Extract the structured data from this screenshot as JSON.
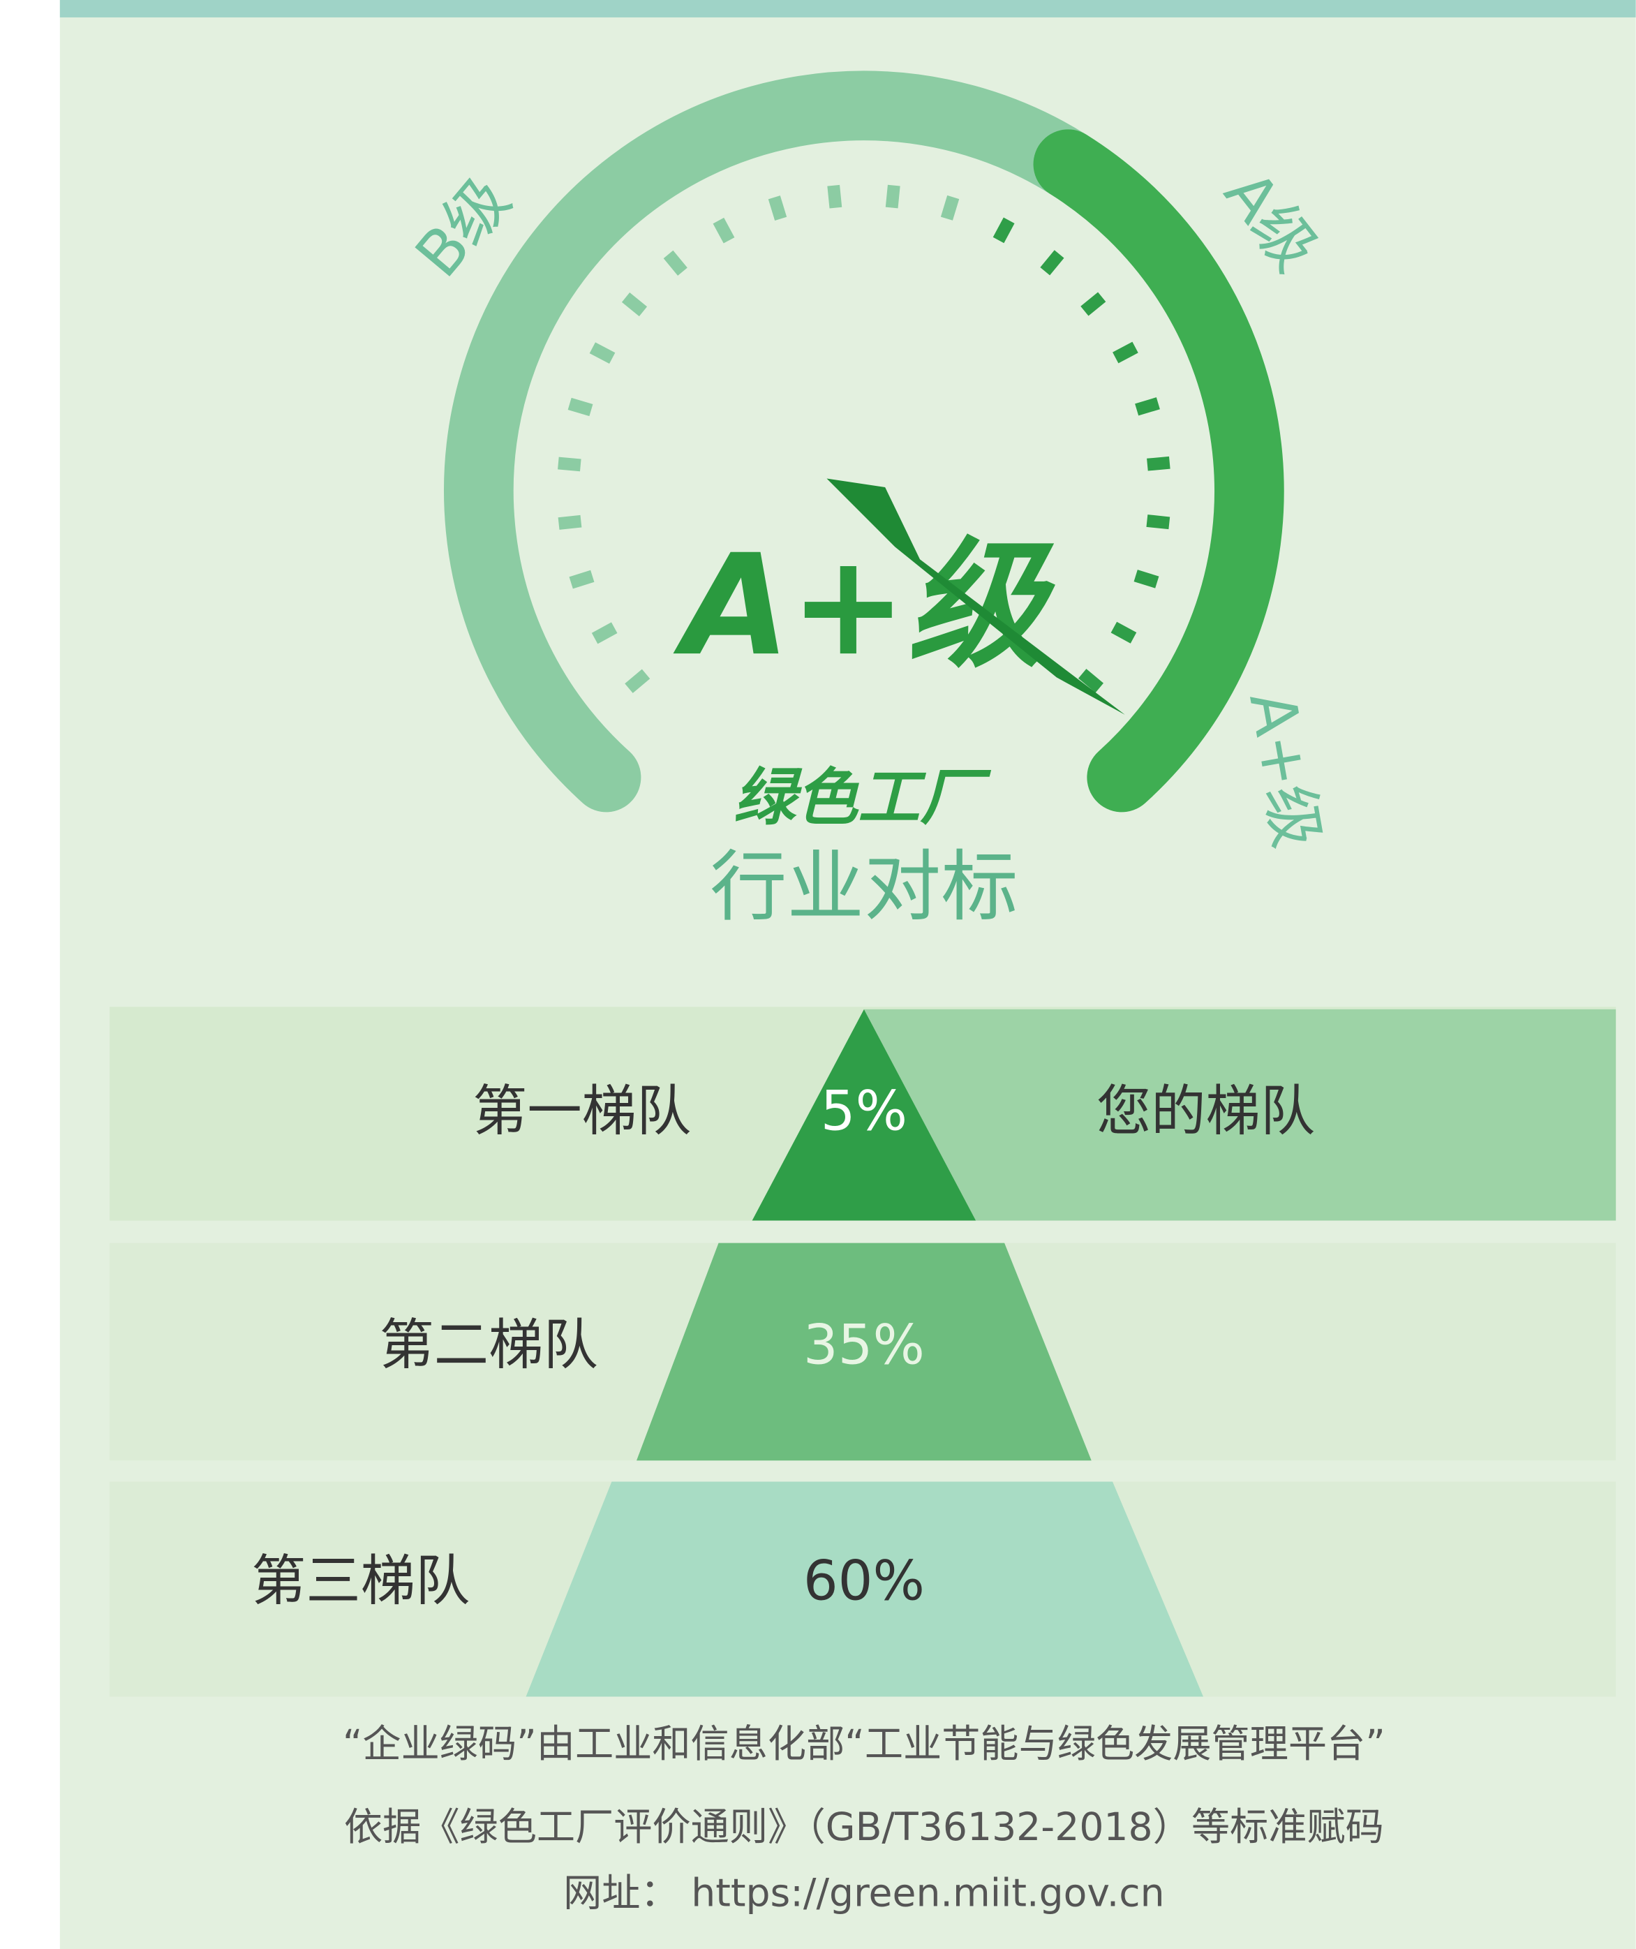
{
  "gauge": {
    "labels": [
      "B级",
      "A级",
      "A+级"
    ],
    "grade": "A+级",
    "subtitle": "绿色工厂",
    "title": "行业对标"
  },
  "pyramid": {
    "tiers": [
      {
        "name": "第一梯队",
        "share": "5%",
        "note": "您的梯队"
      },
      {
        "name": "第二梯队",
        "share": "35%"
      },
      {
        "name": "第三梯队",
        "share": "60%"
      }
    ]
  },
  "footer": [
    "“企业绿码”由工业和信息化部“工业节能与绿色发展管理平台”",
    "依据《绿色工厂评价通则》（GB/T36132-2018）等标准赋码",
    "网址： https://green.miit.gov.cn"
  ]
}
